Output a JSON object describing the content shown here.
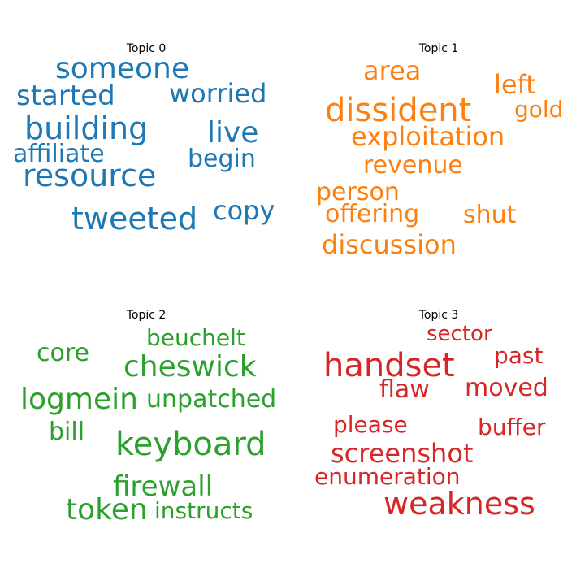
{
  "chart_data": {
    "type": "wordcloud",
    "panels": [
      {
        "title": "Topic 0",
        "color": "#1f77b4",
        "words": [
          "someone",
          "started",
          "worried",
          "building",
          "live",
          "affiliate",
          "begin",
          "resource",
          "tweeted",
          "copy"
        ]
      },
      {
        "title": "Topic 1",
        "color": "#ff7f0e",
        "words": [
          "area",
          "left",
          "dissident",
          "gold",
          "exploitation",
          "revenue",
          "person",
          "offering",
          "shut",
          "discussion"
        ]
      },
      {
        "title": "Topic 2",
        "color": "#2ca02c",
        "words": [
          "beuchelt",
          "core",
          "cheswick",
          "logmein",
          "unpatched",
          "bill",
          "keyboard",
          "firewall",
          "token",
          "instructs"
        ]
      },
      {
        "title": "Topic 3",
        "color": "#d62728",
        "words": [
          "sector",
          "past",
          "handset",
          "flaw",
          "moved",
          "please",
          "buffer",
          "screenshot",
          "enumeration",
          "weakness"
        ]
      }
    ]
  }
}
